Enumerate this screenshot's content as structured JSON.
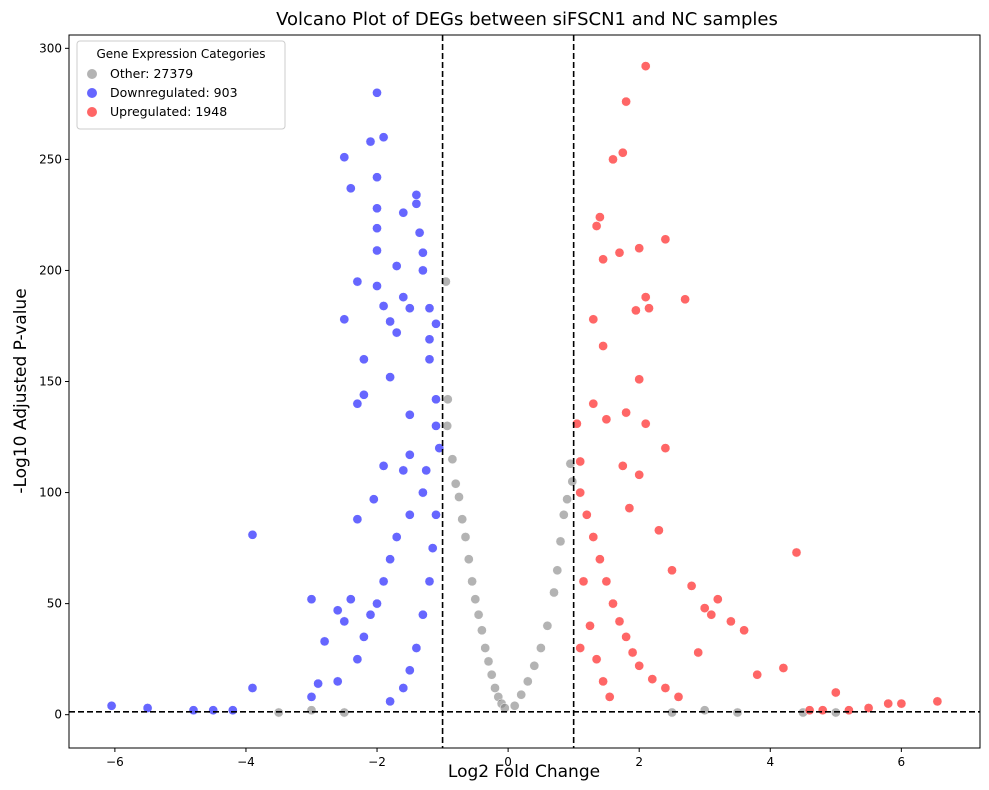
{
  "chart_data": {
    "type": "scatter",
    "title": "Volcano Plot of DEGs between siFSCN1 and NC samples",
    "xlabel": "Log2 Fold Change",
    "ylabel": "-Log10 Adjusted P-value",
    "xlim": [
      -6.7,
      7.2
    ],
    "ylim": [
      -15,
      306
    ],
    "xticks": [
      -6,
      -4,
      -2,
      0,
      2,
      4,
      6
    ],
    "yticks": [
      0,
      50,
      100,
      150,
      200,
      250,
      300
    ],
    "xtick_labels": [
      "−6",
      "−4",
      "−2",
      "0",
      "2",
      "4",
      "6"
    ],
    "ytick_labels": [
      "0",
      "50",
      "100",
      "150",
      "200",
      "250",
      "300"
    ],
    "thresholds": {
      "log2fc": [
        -1,
        1
      ],
      "neg_log10_padj": 1.3
    },
    "grid": false,
    "legend": {
      "title": "Gene Expression Categories",
      "placement": "top-left",
      "entries": [
        {
          "label": "Other: 27379",
          "color": "#808080"
        },
        {
          "label": "Downregulated: 903",
          "color": "#0000ff"
        },
        {
          "label": "Upregulated: 1948",
          "color": "#ff0000"
        }
      ]
    },
    "series": [
      {
        "name": "Other",
        "color": "#808080",
        "points": [
          [
            -0.95,
            195
          ],
          [
            -0.92,
            142
          ],
          [
            -0.93,
            130
          ],
          [
            -0.85,
            115
          ],
          [
            -0.8,
            104
          ],
          [
            -0.75,
            98
          ],
          [
            -0.7,
            88
          ],
          [
            -0.65,
            80
          ],
          [
            -0.6,
            70
          ],
          [
            -0.55,
            60
          ],
          [
            -0.5,
            52
          ],
          [
            -0.45,
            45
          ],
          [
            -0.4,
            38
          ],
          [
            -0.35,
            30
          ],
          [
            -0.3,
            24
          ],
          [
            -0.25,
            18
          ],
          [
            -0.2,
            12
          ],
          [
            -0.15,
            8
          ],
          [
            -0.1,
            5
          ],
          [
            -0.05,
            3
          ],
          [
            0.1,
            4
          ],
          [
            0.2,
            9
          ],
          [
            0.3,
            15
          ],
          [
            0.4,
            22
          ],
          [
            0.5,
            30
          ],
          [
            0.6,
            40
          ],
          [
            0.7,
            55
          ],
          [
            0.75,
            65
          ],
          [
            0.8,
            78
          ],
          [
            0.85,
            90
          ],
          [
            0.9,
            97
          ],
          [
            0.95,
            113
          ],
          [
            0.98,
            105
          ],
          [
            -3.5,
            1
          ],
          [
            -3.0,
            2
          ],
          [
            -2.5,
            1
          ],
          [
            2.5,
            1
          ],
          [
            3.0,
            2
          ],
          [
            3.5,
            1
          ],
          [
            4.5,
            1
          ],
          [
            5.0,
            1
          ]
        ]
      },
      {
        "name": "Downregulated",
        "color": "#0000ff",
        "points": [
          [
            -6.05,
            4
          ],
          [
            -5.5,
            3
          ],
          [
            -4.8,
            2
          ],
          [
            -4.5,
            2
          ],
          [
            -4.2,
            2
          ],
          [
            -3.9,
            81
          ],
          [
            -3.9,
            12
          ],
          [
            -3.0,
            52
          ],
          [
            -2.9,
            14
          ],
          [
            -2.8,
            33
          ],
          [
            -2.6,
            47
          ],
          [
            -2.5,
            42
          ],
          [
            -2.4,
            52
          ],
          [
            -2.5,
            178
          ],
          [
            -2.5,
            251
          ],
          [
            -2.4,
            237
          ],
          [
            -2.3,
            140
          ],
          [
            -2.3,
            195
          ],
          [
            -2.2,
            144
          ],
          [
            -2.2,
            160
          ],
          [
            -2.1,
            258
          ],
          [
            -2.0,
            280
          ],
          [
            -2.0,
            242
          ],
          [
            -2.0,
            228
          ],
          [
            -2.0,
            219
          ],
          [
            -2.0,
            209
          ],
          [
            -2.0,
            193
          ],
          [
            -1.9,
            260
          ],
          [
            -1.9,
            184
          ],
          [
            -1.8,
            177
          ],
          [
            -1.8,
            152
          ],
          [
            -1.7,
            202
          ],
          [
            -1.7,
            172
          ],
          [
            -1.6,
            226
          ],
          [
            -1.6,
            188
          ],
          [
            -1.5,
            183
          ],
          [
            -1.5,
            135
          ],
          [
            -1.5,
            117
          ],
          [
            -1.4,
            234
          ],
          [
            -1.4,
            230
          ],
          [
            -1.35,
            217
          ],
          [
            -1.3,
            200
          ],
          [
            -1.3,
            208
          ],
          [
            -1.2,
            183
          ],
          [
            -1.2,
            169
          ],
          [
            -1.2,
            160
          ],
          [
            -1.1,
            176
          ],
          [
            -1.1,
            142
          ],
          [
            -1.1,
            130
          ],
          [
            -1.05,
            120
          ],
          [
            -1.3,
            100
          ],
          [
            -1.5,
            90
          ],
          [
            -1.7,
            80
          ],
          [
            -1.8,
            70
          ],
          [
            -1.9,
            60
          ],
          [
            -2.0,
            50
          ],
          [
            -2.1,
            45
          ],
          [
            -2.2,
            35
          ],
          [
            -2.3,
            25
          ],
          [
            -2.6,
            15
          ],
          [
            -3.0,
            8
          ],
          [
            -1.2,
            60
          ],
          [
            -1.3,
            45
          ],
          [
            -1.4,
            30
          ],
          [
            -1.5,
            20
          ],
          [
            -1.6,
            12
          ],
          [
            -1.8,
            6
          ],
          [
            -1.1,
            90
          ],
          [
            -1.15,
            75
          ],
          [
            -1.25,
            110
          ],
          [
            -1.6,
            110
          ],
          [
            -2.05,
            97
          ],
          [
            -2.3,
            88
          ],
          [
            -1.9,
            112
          ]
        ]
      },
      {
        "name": "Upregulated",
        "color": "#ff0000",
        "points": [
          [
            2.1,
            292
          ],
          [
            1.8,
            276
          ],
          [
            1.75,
            253
          ],
          [
            1.6,
            250
          ],
          [
            1.4,
            224
          ],
          [
            1.35,
            220
          ],
          [
            2.4,
            214
          ],
          [
            2.0,
            210
          ],
          [
            1.7,
            208
          ],
          [
            1.45,
            205
          ],
          [
            2.1,
            188
          ],
          [
            2.7,
            187
          ],
          [
            2.15,
            183
          ],
          [
            1.95,
            182
          ],
          [
            1.3,
            178
          ],
          [
            2.0,
            151
          ],
          [
            1.45,
            166
          ],
          [
            1.3,
            140
          ],
          [
            1.8,
            136
          ],
          [
            1.5,
            133
          ],
          [
            2.1,
            131
          ],
          [
            1.05,
            131
          ],
          [
            2.4,
            120
          ],
          [
            1.1,
            114
          ],
          [
            1.75,
            112
          ],
          [
            2.0,
            108
          ],
          [
            4.4,
            73
          ],
          [
            2.5,
            65
          ],
          [
            2.8,
            58
          ],
          [
            3.2,
            52
          ],
          [
            3.0,
            48
          ],
          [
            3.4,
            42
          ],
          [
            3.6,
            38
          ],
          [
            3.1,
            45
          ],
          [
            2.9,
            28
          ],
          [
            3.8,
            18
          ],
          [
            4.2,
            21
          ],
          [
            5.0,
            10
          ],
          [
            5.8,
            5
          ],
          [
            6.0,
            5
          ],
          [
            6.55,
            6
          ],
          [
            5.5,
            3
          ],
          [
            5.2,
            2
          ],
          [
            4.8,
            2
          ],
          [
            4.6,
            2
          ],
          [
            1.2,
            90
          ],
          [
            1.3,
            80
          ],
          [
            1.4,
            70
          ],
          [
            1.5,
            60
          ],
          [
            1.6,
            50
          ],
          [
            1.7,
            42
          ],
          [
            1.8,
            35
          ],
          [
            1.9,
            28
          ],
          [
            2.0,
            22
          ],
          [
            2.2,
            16
          ],
          [
            2.4,
            12
          ],
          [
            2.6,
            8
          ],
          [
            1.1,
            100
          ],
          [
            1.15,
            60
          ],
          [
            1.25,
            40
          ],
          [
            1.35,
            25
          ],
          [
            1.45,
            15
          ],
          [
            1.55,
            8
          ],
          [
            1.1,
            30
          ],
          [
            2.3,
            83
          ],
          [
            1.85,
            93
          ]
        ]
      }
    ]
  }
}
